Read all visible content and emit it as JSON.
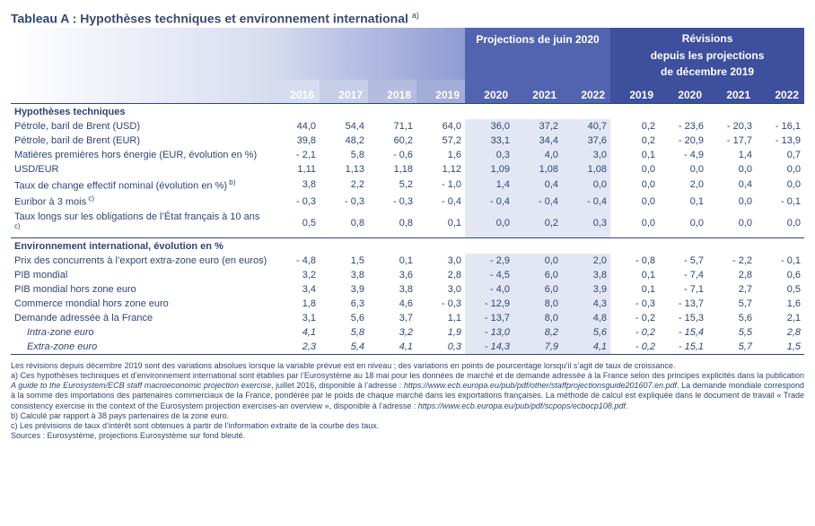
{
  "title": {
    "label": "Tableau A :",
    "text": "Hypothèses techniques et environnement international",
    "sup": "a)"
  },
  "header": {
    "group_proj": "Projections de juin 2020",
    "group_rev_line1": "Révisions",
    "group_rev_line2": "depuis les projections",
    "group_rev_line3": "de décembre 2019",
    "years_proj": [
      "2016",
      "2017",
      "2018",
      "2019",
      "2020",
      "2021",
      "2022"
    ],
    "years_rev": [
      "2019",
      "2020",
      "2021",
      "2022"
    ]
  },
  "colors": {
    "band_left": "#ffffff",
    "band_mid": "#8e9bd3",
    "band_blue": "#5264b0",
    "band_deep": "#3d4f9d",
    "highlight": "#e3e7f4",
    "text": "#2c4676",
    "rule": "#2c4676"
  },
  "sections": [
    {
      "title": "Hypothèses techniques",
      "rows": [
        {
          "label": "Pétrole, baril de Brent (USD)",
          "proj": [
            "44,0",
            "54,4",
            "71,1",
            "64,0",
            "36,0",
            "37,2",
            "40,7"
          ],
          "rev": [
            "0,2",
            "- 23,6",
            "- 20,3",
            "- 16,1"
          ]
        },
        {
          "label": "Pétrole, baril de Brent (EUR)",
          "proj": [
            "39,8",
            "48,2",
            "60,2",
            "57,2",
            "33,1",
            "34,4",
            "37,6"
          ],
          "rev": [
            "0,2",
            "- 20,9",
            "- 17,7",
            "- 13,9"
          ]
        },
        {
          "label": "Matières premières hors énergie (EUR, évolution en %)",
          "proj": [
            "- 2,1",
            "5,8",
            "- 0,6",
            "1,6",
            "0,3",
            "4,0",
            "3,0"
          ],
          "rev": [
            "0,1",
            "- 4,9",
            "1,4",
            "0,7"
          ]
        },
        {
          "label": "USD/EUR",
          "proj": [
            "1,11",
            "1,13",
            "1,18",
            "1,12",
            "1,09",
            "1,08",
            "1,08"
          ],
          "rev": [
            "0,0",
            "0,0",
            "0,0",
            "0,0"
          ]
        },
        {
          "label": "Taux de change effectif nominal (évolution en %)",
          "sup": "b)",
          "proj": [
            "3,8",
            "2,2",
            "5,2",
            "- 1,0",
            "1,4",
            "0,4",
            "0,0"
          ],
          "rev": [
            "0,0",
            "2,0",
            "0,4",
            "0,0"
          ]
        },
        {
          "label": "Euribor à 3 mois",
          "sup": "c)",
          "proj": [
            "- 0,3",
            "- 0,3",
            "- 0,3",
            "- 0,4",
            "- 0,4",
            "- 0,4",
            "- 0,4"
          ],
          "rev": [
            "0,0",
            "0,1",
            "0,0",
            "- 0,1"
          ]
        },
        {
          "label": "Taux longs sur les obligations de l’État français à 10 ans",
          "sup": "c)",
          "proj": [
            "0,5",
            "0,8",
            "0,8",
            "0,1",
            "0,0",
            "0,2",
            "0,3"
          ],
          "rev": [
            "0,0",
            "0,0",
            "0,0",
            "0,0"
          ]
        }
      ]
    },
    {
      "title": "Environnement international, évolution en %",
      "rows": [
        {
          "label": "Prix des concurrents à l’export extra-zone euro (en euros)",
          "proj": [
            "- 4,8",
            "1,5",
            "0,1",
            "3,0",
            "- 2,9",
            "0,0",
            "2,0"
          ],
          "rev": [
            "- 0,8",
            "- 5,7",
            "- 2,2",
            "- 0,1"
          ]
        },
        {
          "label": "PIB mondial",
          "proj": [
            "3,2",
            "3,8",
            "3,6",
            "2,8",
            "- 4,5",
            "6,0",
            "3,8"
          ],
          "rev": [
            "0,1",
            "- 7,4",
            "2,8",
            "0,6"
          ]
        },
        {
          "label": "PIB mondial hors zone euro",
          "proj": [
            "3,4",
            "3,9",
            "3,8",
            "3,0",
            "- 4,0",
            "6,0",
            "3,9"
          ],
          "rev": [
            "0,1",
            "- 7,1",
            "2,7",
            "0,5"
          ]
        },
        {
          "label": "Commerce mondial hors zone euro",
          "proj": [
            "1,8",
            "6,3",
            "4,6",
            "- 0,3",
            "- 12,9",
            "8,0",
            "4,3"
          ],
          "rev": [
            "- 0,3",
            "- 13,7",
            "5,7",
            "1,6"
          ]
        },
        {
          "label": "Demande adressée à la France",
          "proj": [
            "3,1",
            "5,6",
            "3,7",
            "1,1",
            "- 13,7",
            "8,0",
            "4,8"
          ],
          "rev": [
            "- 0,2",
            "- 15,3",
            "5,6",
            "2,1"
          ]
        },
        {
          "label": "Intra-zone euro",
          "italic": true,
          "indent": true,
          "proj": [
            "4,1",
            "5,8",
            "3,2",
            "1,9",
            "- 13,0",
            "8,2",
            "5,6"
          ],
          "rev": [
            "- 0,2",
            "- 15,4",
            "5,5",
            "2,8"
          ]
        },
        {
          "label": "Extra-zone euro",
          "italic": true,
          "indent": true,
          "proj": [
            "2,3",
            "5,4",
            "4,1",
            "0,3",
            "- 14,3",
            "7,9",
            "4,1"
          ],
          "rev": [
            "- 0,2",
            "- 15,1",
            "5,7",
            "1,5"
          ]
        }
      ]
    }
  ],
  "footnotes": {
    "intro": "Les révisions depuis décembre 2019 sont des variations absolues lorsque la variable prévue est en niveau ; des variations en points de pourcentage lorsqu’il s’agit de taux de croissance.",
    "a": "a) Ces hypothèses techniques et d’environnement international sont établies par l’Eurosystème au 18 mai pour les données de marché et de demande adressée à la France selon des principes explicités dans la publication ",
    "a_it1": "A guide to the Eurosystem/ECB staff macroeconomic projection exercise",
    "a_mid": ", juillet 2016, disponible à l’adresse : ",
    "a_url1": "https://www.ecb.europa.eu/pub/pdf/other/staffprojectionsguide201607.en.pdf",
    "a_mid2": ". La demande mondiale correspond à la somme des importations des partenaires commerciaux de la France, pondérée par le poids de chaque marché dans les exportations françaises. La méthode de calcul est expliquée dans le document de travail « Trade consistency exercise in the context of the Eurosystem projection exercises-an overview », disponible à l’adresse : ",
    "a_url2": "https://www.ecb.europa.eu/pub/pdf/scpops/ecbocp108.pdf",
    "a_end": ".",
    "b": "b) Calculé par rapport à 38 pays partenaires de la zone euro.",
    "c": "c) Les prévisions de taux d’intérêt sont obtenues à partir de l’information extraite de la courbe des taux.",
    "sources": "Sources : Eurosystème, projections Eurosystème sur fond bleuté."
  }
}
